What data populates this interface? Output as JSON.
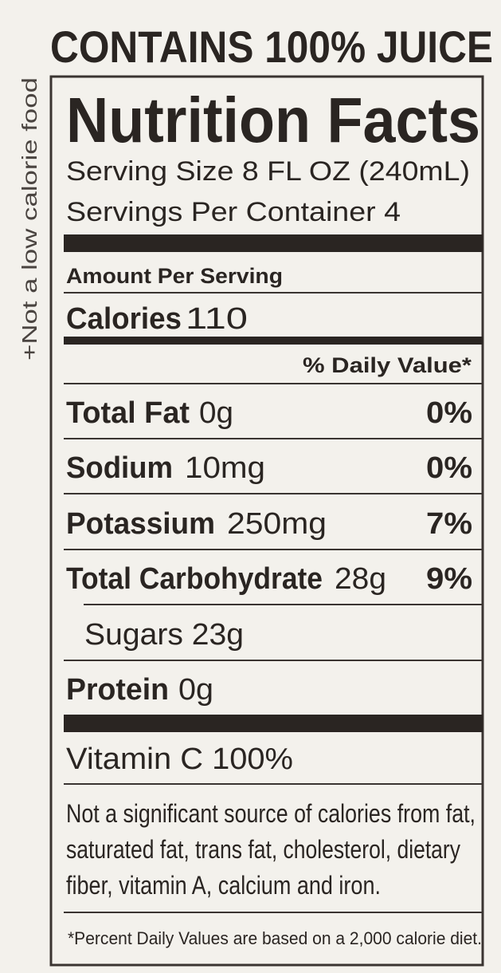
{
  "header": "CONTAINS 100% JUICE",
  "side_note": "+Not a low calorie food",
  "label": {
    "title": "Nutrition Facts",
    "serving_size": "Serving Size 8 FL OZ (240mL)",
    "servings_per_container": "Servings Per Container 4",
    "amount_per_serving": "Amount Per Serving",
    "calories": {
      "label": "Calories",
      "value": "110"
    },
    "daily_value_header": "% Daily Value*",
    "nutrients": [
      {
        "name": "Total Fat",
        "amount": "0g",
        "daily_value": "0%"
      },
      {
        "name": "Sodium",
        "amount": "10mg",
        "daily_value": "0%"
      },
      {
        "name": "Potassium",
        "amount": "250mg",
        "daily_value": "7%"
      },
      {
        "name": "Total Carbohydrate",
        "amount": "28g",
        "daily_value": "9%"
      },
      {
        "name": "Sugars 23g"
      },
      {
        "name": "Protein",
        "amount": "0g"
      }
    ],
    "vitamin": "Vitamin C 100%",
    "note": [
      "Not a significant source of calories from fat,",
      "saturated fat, trans fat, cholesterol, dietary",
      "fiber, vitamin A, calcium and iron."
    ],
    "footnote": "*Percent Daily Values are based on a 2,000 calorie diet."
  }
}
